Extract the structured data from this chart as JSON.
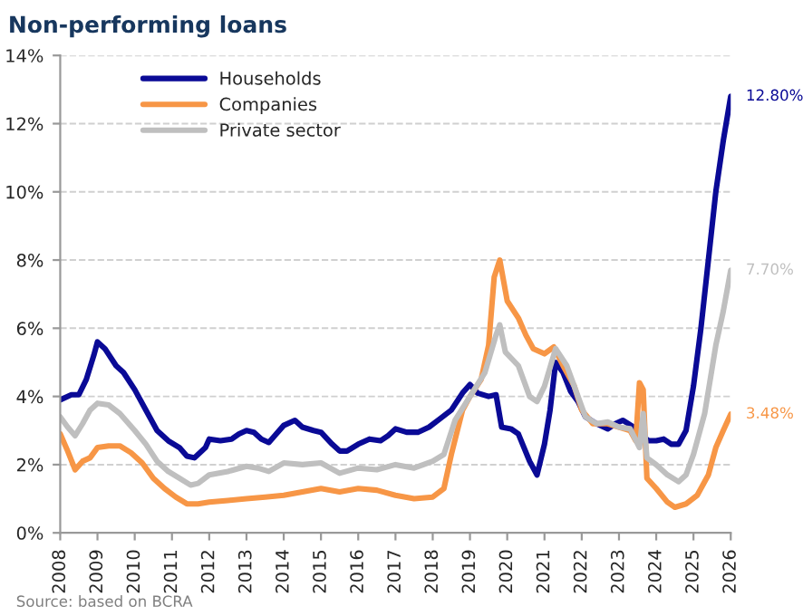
{
  "chart_data": {
    "type": "line",
    "title": "Non-performing loans",
    "annotations": [
      "Source: based on BCRA"
    ],
    "xlim": [
      2008,
      2026
    ],
    "xticks": [
      2008,
      2009,
      2010,
      2011,
      2012,
      2013,
      2014,
      2015,
      2016,
      2017,
      2018,
      2019,
      2020,
      2021,
      2022,
      2023,
      2024,
      2025,
      2026
    ],
    "ylim": [
      0,
      14
    ],
    "yticks": [
      {
        "value": 0,
        "label": "0%"
      },
      {
        "value": 2,
        "label": "2%"
      },
      {
        "value": 4,
        "label": "4%"
      },
      {
        "value": 6,
        "label": "6%"
      },
      {
        "value": 8,
        "label": "8%"
      },
      {
        "value": 10,
        "label": "10%"
      },
      {
        "value": 12,
        "label": "12%"
      },
      {
        "value": 14,
        "label": "14%"
      }
    ],
    "grid": "y",
    "legend": "top left",
    "marker": "none",
    "line_style": "solid",
    "series": [
      {
        "name": "Households",
        "color": "#0a0a96",
        "x": [
          2008.0,
          2008.3,
          2008.5,
          2008.7,
          2008.9,
          2009.0,
          2009.2,
          2009.5,
          2009.7,
          2010.0,
          2010.3,
          2010.6,
          2010.9,
          2011.2,
          2011.4,
          2011.6,
          2011.9,
          2012.0,
          2012.3,
          2012.6,
          2012.8,
          2013.0,
          2013.2,
          2013.4,
          2013.6,
          2013.8,
          2014.0,
          2014.3,
          2014.5,
          2014.8,
          2015.0,
          2015.3,
          2015.5,
          2015.7,
          2016.0,
          2016.3,
          2016.6,
          2016.8,
          2017.0,
          2017.3,
          2017.6,
          2017.9,
          2018.2,
          2018.5,
          2018.8,
          2019.0,
          2019.2,
          2019.5,
          2019.7,
          2019.85,
          2020.1,
          2020.3,
          2020.6,
          2020.8,
          2021.0,
          2021.15,
          2021.3,
          2021.5,
          2021.7,
          2021.9,
          2022.1,
          2022.4,
          2022.7,
          2022.9,
          2023.1,
          2023.4,
          2023.6,
          2023.8,
          2024.0,
          2024.2,
          2024.4,
          2024.6,
          2024.8,
          2025.0,
          2025.2,
          2025.4,
          2025.6,
          2025.8,
          2026.0
        ],
        "values": [
          3.9,
          4.05,
          4.05,
          4.5,
          5.2,
          5.6,
          5.4,
          4.9,
          4.7,
          4.2,
          3.6,
          3.0,
          2.7,
          2.5,
          2.25,
          2.2,
          2.5,
          2.75,
          2.7,
          2.75,
          2.9,
          3.0,
          2.95,
          2.75,
          2.65,
          2.9,
          3.15,
          3.3,
          3.1,
          3.0,
          2.95,
          2.6,
          2.4,
          2.4,
          2.6,
          2.75,
          2.7,
          2.85,
          3.05,
          2.95,
          2.95,
          3.1,
          3.35,
          3.6,
          4.1,
          4.35,
          4.1,
          4.0,
          4.05,
          3.1,
          3.05,
          2.9,
          2.1,
          1.7,
          2.6,
          3.6,
          5.0,
          4.7,
          4.15,
          3.85,
          3.4,
          3.2,
          3.05,
          3.2,
          3.3,
          3.1,
          2.85,
          2.7,
          2.7,
          2.75,
          2.6,
          2.6,
          3.0,
          4.3,
          6.0,
          8.0,
          10.0,
          11.5,
          12.8
        ],
        "value_labels": [
          null,
          null,
          null,
          null,
          null,
          null,
          null,
          null,
          null,
          null,
          null,
          null,
          null,
          null,
          null,
          null,
          null,
          null,
          null,
          null,
          null,
          null,
          null,
          null,
          null,
          null,
          null,
          null,
          null,
          null,
          null,
          null,
          null,
          null,
          null,
          null,
          null,
          null,
          null,
          null,
          null,
          null,
          null,
          null,
          null,
          null,
          null,
          null,
          null,
          null,
          null,
          null,
          null,
          null,
          null,
          null,
          null,
          null,
          null,
          null,
          null,
          null,
          null,
          null,
          null,
          null,
          null,
          null,
          null,
          null,
          null,
          null,
          null,
          null,
          null,
          null,
          null,
          null,
          "12.80%"
        ]
      },
      {
        "name": "Companies",
        "color": "#f79646",
        "x": [
          2008.0,
          2008.2,
          2008.4,
          2008.6,
          2008.8,
          2009.0,
          2009.3,
          2009.6,
          2009.9,
          2010.2,
          2010.5,
          2010.8,
          2011.1,
          2011.4,
          2011.7,
          2012.0,
          2012.5,
          2013.0,
          2013.5,
          2014.0,
          2014.5,
          2015.0,
          2015.5,
          2016.0,
          2016.5,
          2017.0,
          2017.5,
          2018.0,
          2018.3,
          2018.5,
          2018.8,
          2019.0,
          2019.3,
          2019.5,
          2019.65,
          2019.8,
          2020.0,
          2020.3,
          2020.5,
          2020.7,
          2021.0,
          2021.25,
          2021.5,
          2021.8,
          2022.0,
          2022.3,
          2022.7,
          2023.0,
          2023.3,
          2023.45,
          2023.55,
          2023.65,
          2023.75,
          2024.0,
          2024.3,
          2024.5,
          2024.8,
          2025.1,
          2025.4,
          2025.6,
          2025.8,
          2026.0
        ],
        "values": [
          2.9,
          2.4,
          1.85,
          2.1,
          2.2,
          2.5,
          2.55,
          2.55,
          2.35,
          2.05,
          1.6,
          1.3,
          1.05,
          0.85,
          0.85,
          0.9,
          0.95,
          1.0,
          1.05,
          1.1,
          1.2,
          1.3,
          1.2,
          1.3,
          1.25,
          1.1,
          1.0,
          1.05,
          1.3,
          2.3,
          3.6,
          4.0,
          4.5,
          5.5,
          7.5,
          8.0,
          6.8,
          6.3,
          5.8,
          5.4,
          5.25,
          5.45,
          4.9,
          4.3,
          3.6,
          3.2,
          3.2,
          3.1,
          3.0,
          2.7,
          4.4,
          4.2,
          1.6,
          1.3,
          0.9,
          0.75,
          0.85,
          1.1,
          1.7,
          2.5,
          3.0,
          3.48
        ],
        "value_labels": [
          null,
          null,
          null,
          null,
          null,
          null,
          null,
          null,
          null,
          null,
          null,
          null,
          null,
          null,
          null,
          null,
          null,
          null,
          null,
          null,
          null,
          null,
          null,
          null,
          null,
          null,
          null,
          null,
          null,
          null,
          null,
          null,
          null,
          null,
          null,
          null,
          null,
          null,
          null,
          null,
          null,
          null,
          null,
          null,
          null,
          null,
          null,
          null,
          null,
          null,
          null,
          null,
          null,
          null,
          null,
          null,
          null,
          null,
          null,
          null,
          null,
          "3.48%"
        ]
      },
      {
        "name": "Private sector",
        "color": "#bfbfbf",
        "x": [
          2008.0,
          2008.2,
          2008.4,
          2008.6,
          2008.8,
          2009.0,
          2009.3,
          2009.6,
          2010.0,
          2010.3,
          2010.6,
          2010.9,
          2011.2,
          2011.5,
          2011.7,
          2012.0,
          2012.5,
          2013.0,
          2013.3,
          2013.6,
          2014.0,
          2014.5,
          2015.0,
          2015.5,
          2016.0,
          2016.5,
          2017.0,
          2017.5,
          2018.0,
          2018.3,
          2018.6,
          2019.0,
          2019.4,
          2019.7,
          2019.8,
          2019.95,
          2020.3,
          2020.6,
          2020.8,
          2021.0,
          2021.3,
          2021.6,
          2021.9,
          2022.1,
          2022.4,
          2022.7,
          2023.0,
          2023.3,
          2023.55,
          2023.65,
          2023.75,
          2024.0,
          2024.3,
          2024.6,
          2024.8,
          2025.0,
          2025.3,
          2025.6,
          2025.8,
          2026.0
        ],
        "values": [
          3.4,
          3.1,
          2.85,
          3.2,
          3.6,
          3.8,
          3.75,
          3.5,
          3.0,
          2.6,
          2.1,
          1.8,
          1.6,
          1.4,
          1.45,
          1.7,
          1.8,
          1.95,
          1.9,
          1.8,
          2.05,
          2.0,
          2.05,
          1.75,
          1.9,
          1.85,
          2.0,
          1.9,
          2.1,
          2.3,
          3.3,
          4.0,
          4.7,
          5.8,
          6.1,
          5.3,
          4.9,
          4.0,
          3.85,
          4.3,
          5.4,
          4.9,
          4.0,
          3.4,
          3.2,
          3.25,
          3.1,
          3.05,
          2.5,
          3.5,
          2.2,
          2.0,
          1.7,
          1.5,
          1.7,
          2.3,
          3.5,
          5.5,
          6.5,
          7.7
        ],
        "value_labels": [
          null,
          null,
          null,
          null,
          null,
          null,
          null,
          null,
          null,
          null,
          null,
          null,
          null,
          null,
          null,
          null,
          null,
          null,
          null,
          null,
          null,
          null,
          null,
          null,
          null,
          null,
          null,
          null,
          null,
          null,
          null,
          null,
          null,
          null,
          null,
          null,
          null,
          null,
          null,
          null,
          null,
          null,
          null,
          null,
          null,
          null,
          null,
          null,
          null,
          null,
          null,
          null,
          null,
          null,
          null,
          null,
          null,
          null,
          null,
          "7.70%"
        ]
      }
    ]
  }
}
